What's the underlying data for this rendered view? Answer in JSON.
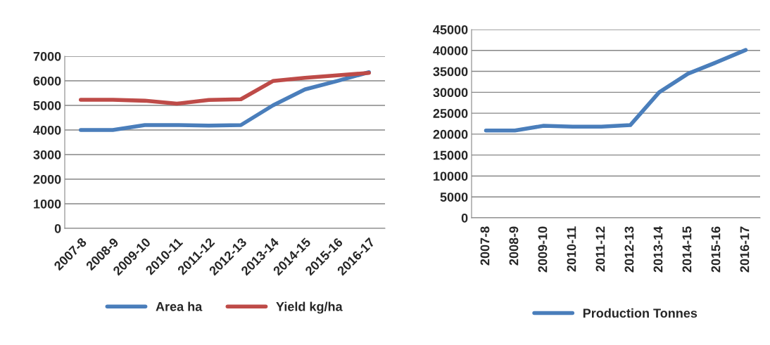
{
  "chart_data": [
    {
      "type": "line",
      "categories": [
        "2007-8",
        "2008-9",
        "2009-10",
        "2010-11",
        "2011-12",
        "2012-13",
        "2013-14",
        "2014-15",
        "2015-16",
        "2016-17"
      ],
      "series": [
        {
          "name": "Area ha",
          "color": "#4a7ebb",
          "values": [
            4000,
            4000,
            4200,
            4200,
            4180,
            4200,
            5000,
            5650,
            5990,
            6350
          ]
        },
        {
          "name": "Yield kg/ha",
          "color": "#be4b48",
          "values": [
            5230,
            5230,
            5190,
            5070,
            5220,
            5250,
            5990,
            6120,
            6220,
            6320
          ]
        }
      ],
      "ylim": [
        0,
        7000
      ],
      "yticks": [
        0,
        1000,
        2000,
        3000,
        4000,
        5000,
        6000,
        7000
      ],
      "grid": "y",
      "legend": "bottom"
    },
    {
      "type": "line",
      "categories": [
        "2007-8",
        "2008-9",
        "2009-10",
        "2010-11",
        "2011-12",
        "2012-13",
        "2013-14",
        "2014-15",
        "2015-16",
        "2016-17"
      ],
      "series": [
        {
          "name": "Production Tonnes",
          "color": "#4a7ebb",
          "values": [
            20850,
            20850,
            22000,
            21800,
            21800,
            22150,
            30000,
            34450,
            37200,
            40100
          ]
        }
      ],
      "ylim": [
        0,
        45000
      ],
      "yticks": [
        0,
        5000,
        10000,
        15000,
        20000,
        25000,
        30000,
        35000,
        40000,
        45000
      ],
      "grid": "y",
      "legend": "bottom"
    }
  ]
}
